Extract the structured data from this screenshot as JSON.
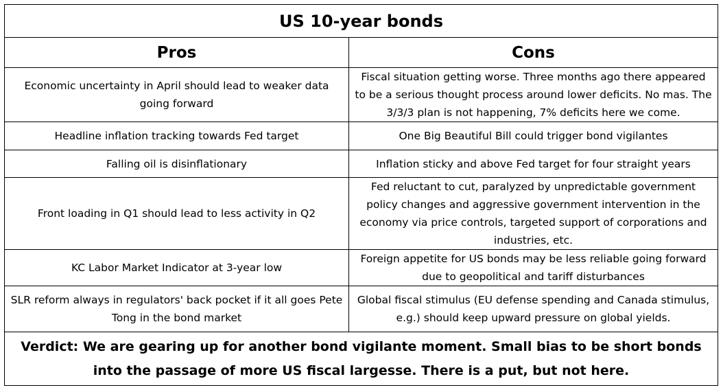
{
  "table": {
    "title": "US 10-year bonds",
    "headers": {
      "pros": "Pros",
      "cons": "Cons"
    },
    "rows": [
      {
        "pro": "Economic uncertainty in April should lead to weaker data going forward",
        "con": "Fiscal situation getting worse. Three months ago there appeared to be a serious thought process around lower deficits. No mas. The 3/3/3 plan is not happening, 7% deficits here we come."
      },
      {
        "pro": "Headline inflation tracking towards Fed target",
        "con": "One Big Beautiful Bill could trigger bond vigilantes"
      },
      {
        "pro": "Falling oil is disinflationary",
        "con": "Inflation sticky and above Fed target for four straight years"
      },
      {
        "pro": "Front loading in Q1 should lead to less activity in Q2",
        "con": "Fed reluctant to cut, paralyzed by unpredictable government policy changes and aggressive government intervention in the economy via price controls, targeted support of corporations and industries, etc."
      },
      {
        "pro": "KC Labor Market Indicator at 3-year low",
        "con": "Foreign appetite for US bonds may be less reliable going forward due to geopolitical and tariff disturbances"
      },
      {
        "pro": "SLR reform always in regulators' back pocket if it all goes Pete Tong in the bond market",
        "con": "Global fiscal stimulus (EU defense spending and Canada stimulus, e.g.) should keep upward pressure on global yields."
      }
    ],
    "verdict": "Verdict: We are gearing up for another bond vigilante moment. Small bias to be short bonds into the passage of more US fiscal largesse. There is a put, but not here."
  }
}
